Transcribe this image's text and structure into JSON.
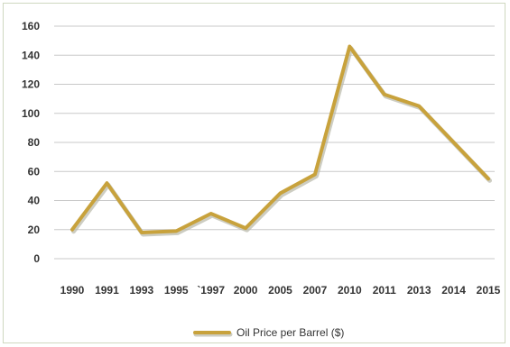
{
  "chart_data": {
    "type": "line",
    "categories": [
      "1990",
      "1991",
      "1993",
      "1995",
      "`1997",
      "2000",
      "2005",
      "2007",
      "2010",
      "2011",
      "2013",
      "2014",
      "2015"
    ],
    "series": [
      {
        "name": "Oil Price per Barrel ($)",
        "values": [
          20,
          52,
          18,
          19,
          31,
          21,
          45,
          58,
          146,
          113,
          105,
          80,
          55
        ],
        "color": "#c8a23c",
        "shadow_color": "#b8b8a8"
      }
    ],
    "title": "",
    "xlabel": "",
    "ylabel": "",
    "ylim": [
      0,
      160
    ],
    "yticks": [
      0,
      20,
      40,
      60,
      80,
      100,
      120,
      140,
      160
    ],
    "grid": true,
    "legend": "bottom",
    "colors": {
      "gridline": "#c8c8c8",
      "border": "#cfd8c0",
      "text": "#333333"
    }
  }
}
